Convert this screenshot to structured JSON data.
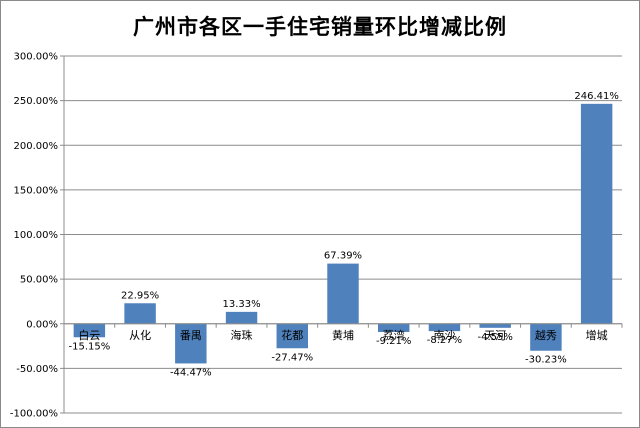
{
  "chart_data": {
    "type": "bar",
    "title": "广州市各区一手住宅销量环比增减比例",
    "xlabel": "",
    "ylabel": "",
    "ylim": [
      -100,
      300
    ],
    "yticks": [
      "300.00%",
      "250.00%",
      "200.00%",
      "150.00%",
      "100.00%",
      "50.00%",
      "0.00%",
      "-50.00%",
      "-100.00%"
    ],
    "ytick_values": [
      300,
      250,
      200,
      150,
      100,
      50,
      0,
      -50,
      -100
    ],
    "grid": true,
    "legend": "none",
    "bar_color": "#4f81bd",
    "categories": [
      "白云",
      "从化",
      "番禺",
      "海珠",
      "花都",
      "黄埔",
      "荔湾",
      "南沙",
      "天河",
      "越秀",
      "增城"
    ],
    "values": [
      -15.15,
      22.95,
      -44.47,
      13.33,
      -27.47,
      67.39,
      -9.21,
      -8.27,
      -4.55,
      -30.23,
      246.41
    ],
    "data_labels": [
      "-15.15%",
      "22.95%",
      "-44.47%",
      "13.33%",
      "-27.47%",
      "67.39%",
      "-9.21%",
      "-8.27%",
      "-4.55%",
      "-30.23%",
      "246.41%"
    ]
  }
}
